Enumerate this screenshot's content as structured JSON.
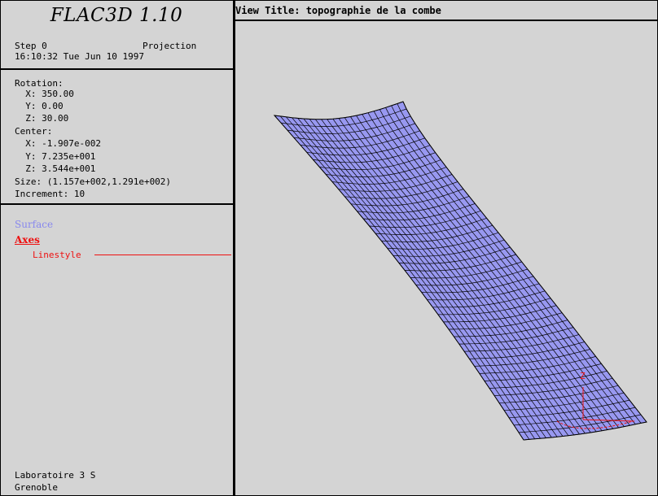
{
  "app": {
    "title": "FLAC3D 1.10"
  },
  "status": {
    "step": "Step 0",
    "mode": "Projection",
    "datetime": "16:10:32 Tue Jun 10 1997"
  },
  "view_params": {
    "rotation_label": "Rotation:",
    "rotation_x": "  X: 350.00",
    "rotation_y": "  Y: 0.00",
    "rotation_z": "  Z: 30.00",
    "center_label": "Center:",
    "center_x": "  X: -1.907e-002",
    "center_y": "  Y: 7.235e+001",
    "center_z": "  Z: 3.544e+001",
    "size": "Size: (1.157e+002,1.291e+002)",
    "increment": "Increment: 10"
  },
  "legend": {
    "surface_label": "Surface",
    "axes_label": "Axes",
    "linestyle_label": "Linestyle"
  },
  "footer": {
    "line1": "Laboratoire 3 S",
    "line2": "Grenoble"
  },
  "view": {
    "title": "View Title: topographie de la combe",
    "axis_label_z": "Z"
  },
  "colors": {
    "background": "#d4d4d4",
    "surface_fill": "#9898f0",
    "mesh_line": "#000000",
    "axes": "#ee1111",
    "surface_legend": "#8888ee"
  }
}
